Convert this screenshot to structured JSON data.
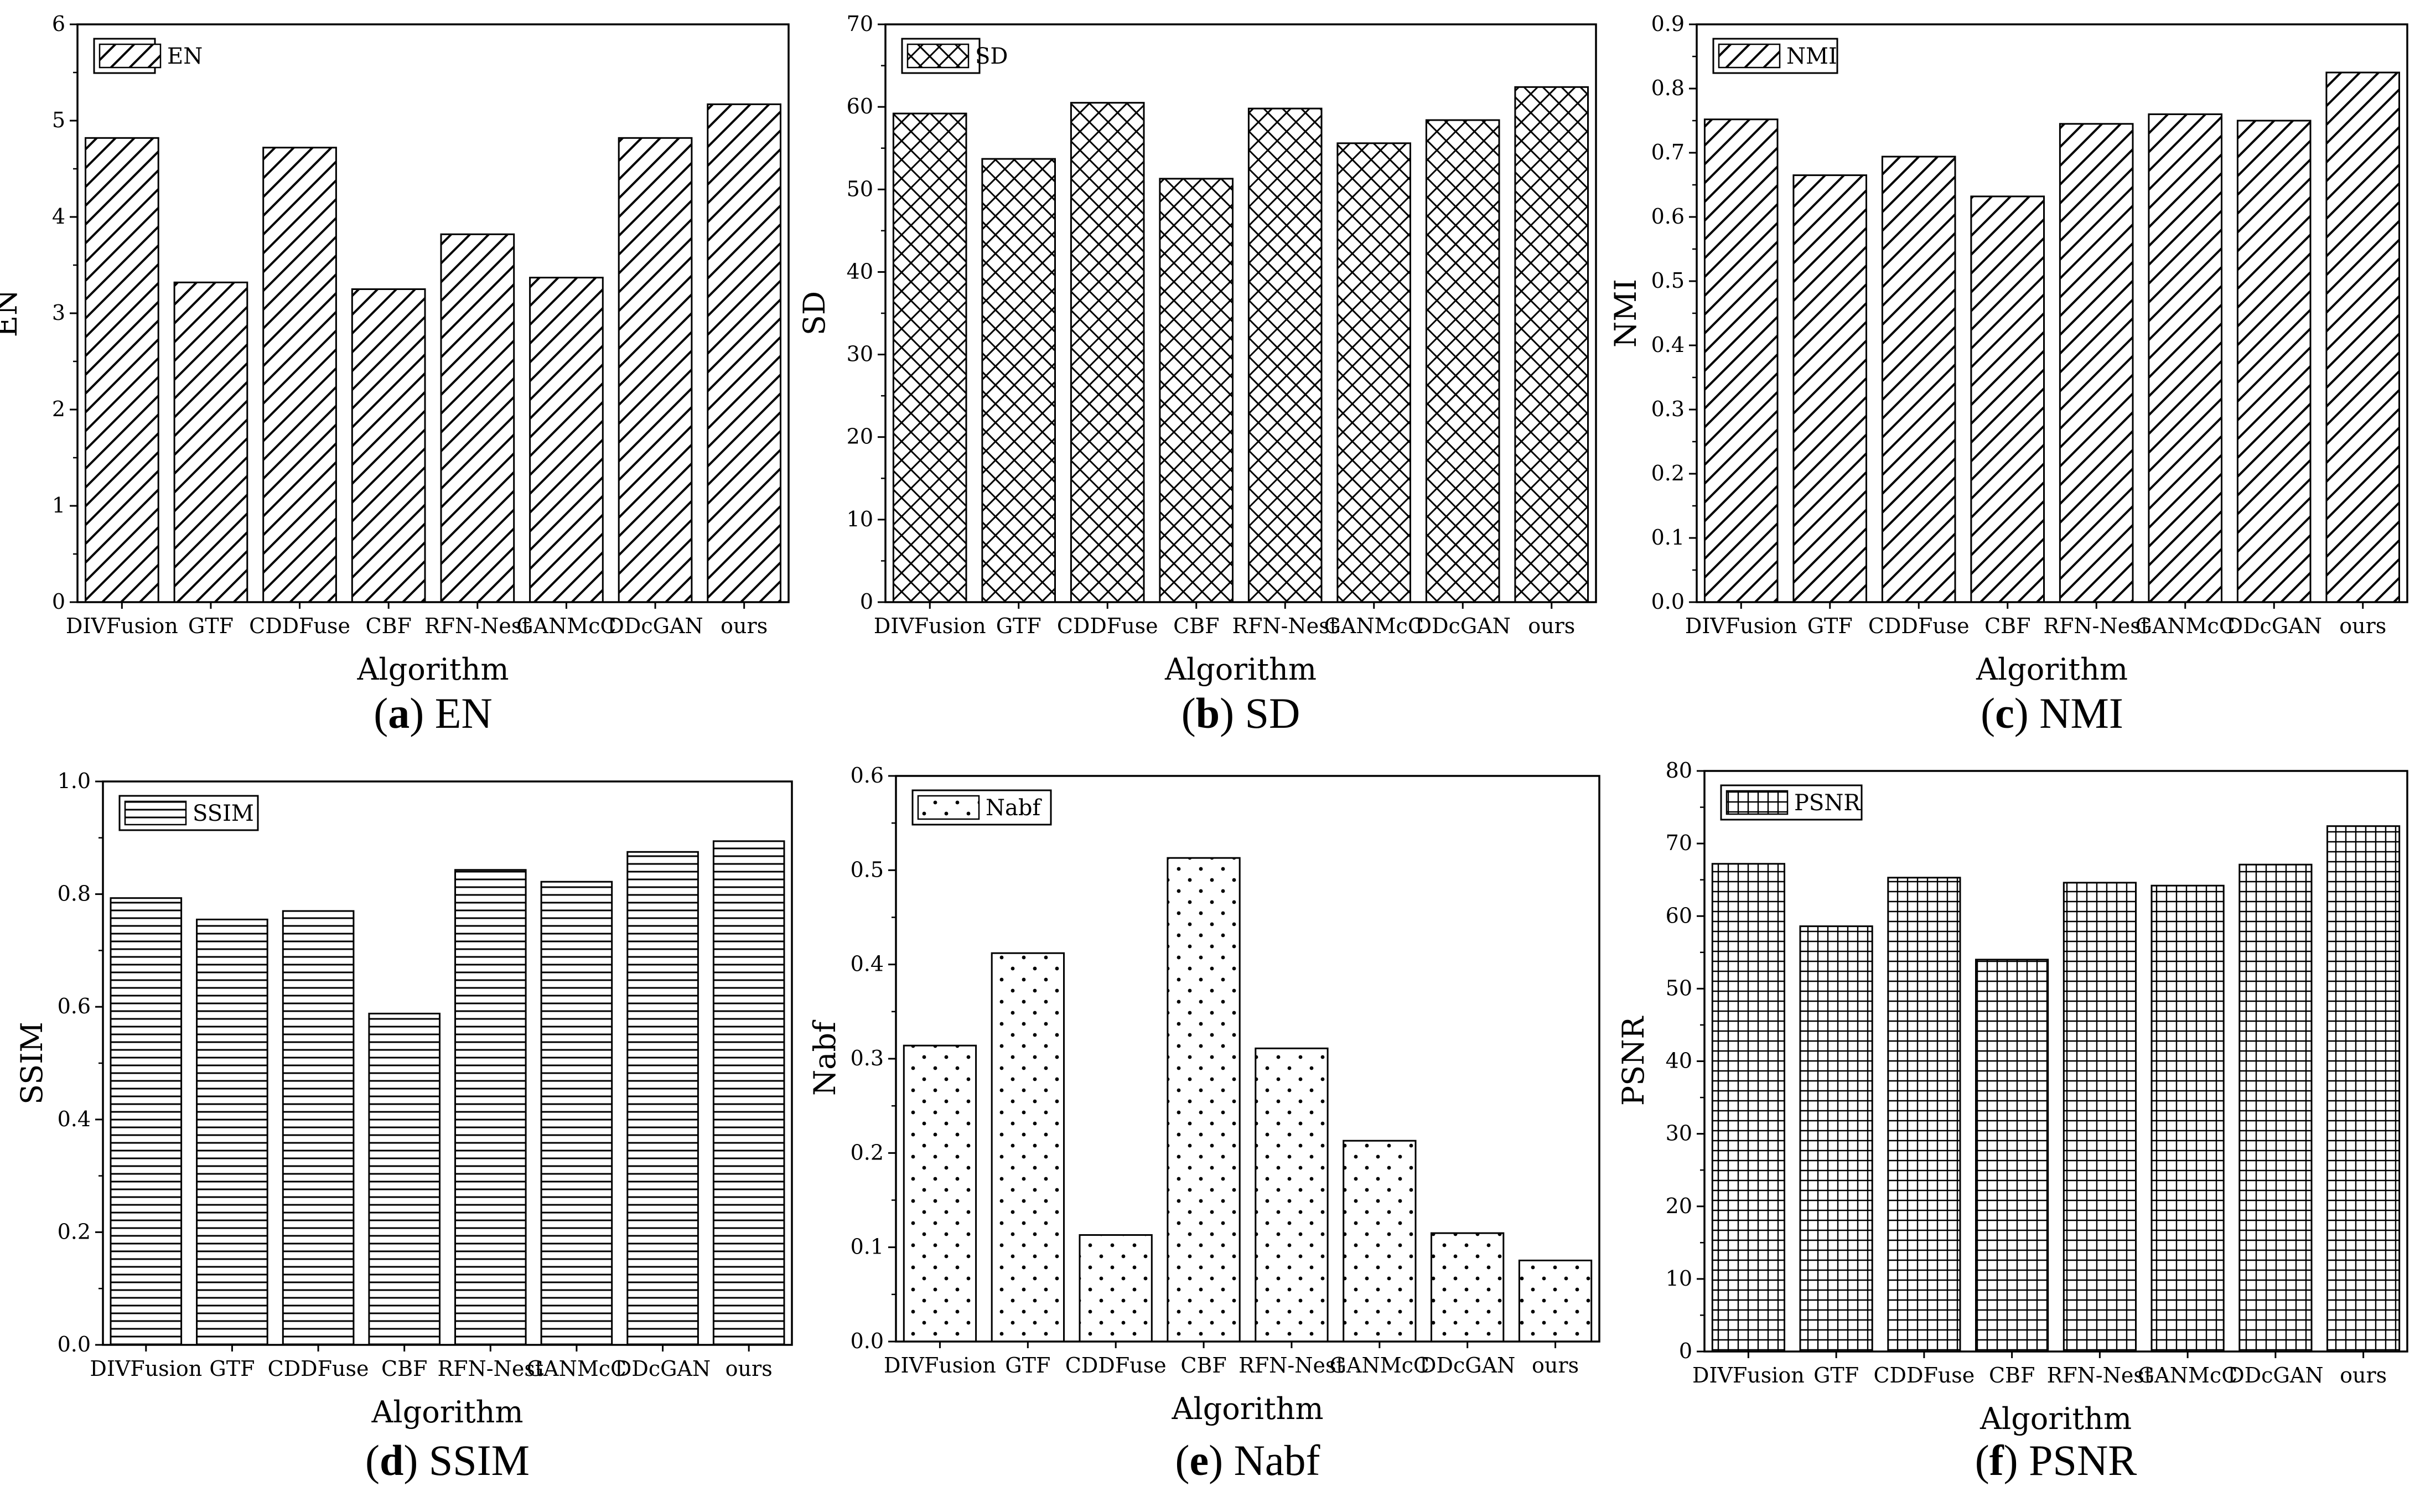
{
  "figure": {
    "charts": [
      {
        "type": "bar",
        "pattern": "diag",
        "caption_letter": "a",
        "caption_text": "EN",
        "title": "EN",
        "legend": "EN",
        "xlabel": "Algorithm",
        "ylabel": "EN",
        "categories": [
          "DIVFusion",
          "GTF",
          "CDDFuse",
          "CBF",
          "RFN-Nest",
          "GANMcC",
          "DDcGAN",
          "ours"
        ],
        "values": [
          4.82,
          3.32,
          4.72,
          3.25,
          3.82,
          3.37,
          4.82,
          5.17
        ],
        "ylim": [
          0,
          6
        ],
        "yticks": [
          0,
          1,
          2,
          3,
          4,
          5,
          6
        ],
        "ytick_labels": [
          "0",
          "1",
          "2",
          "3",
          "4",
          "5",
          "6"
        ]
      },
      {
        "type": "bar",
        "pattern": "cross",
        "caption_letter": "b",
        "caption_text": "SD",
        "title": "SD",
        "legend": "SD",
        "xlabel": "Algorithm",
        "ylabel": "SD",
        "categories": [
          "DIVFusion",
          "GTF",
          "CDDFuse",
          "CBF",
          "RFN-Nest",
          "GANMcC",
          "DDcGAN",
          "ours"
        ],
        "values": [
          59.2,
          53.7,
          60.5,
          51.3,
          59.8,
          55.6,
          58.4,
          62.4
        ],
        "ylim": [
          0,
          70
        ],
        "yticks": [
          0,
          10,
          20,
          30,
          40,
          50,
          60,
          70
        ],
        "ytick_labels": [
          "0",
          "10",
          "20",
          "30",
          "40",
          "50",
          "60",
          "70"
        ]
      },
      {
        "type": "bar",
        "pattern": "diag",
        "caption_letter": "c",
        "caption_text": "NMI",
        "title": "NMI",
        "legend": "NMI",
        "xlabel": "Algorithm",
        "ylabel": "NMI",
        "categories": [
          "DIVFusion",
          "GTF",
          "CDDFuse",
          "CBF",
          "RFN-Nest",
          "GANMcC",
          "DDcGAN",
          "ours"
        ],
        "values": [
          0.752,
          0.665,
          0.694,
          0.632,
          0.745,
          0.76,
          0.75,
          0.825
        ],
        "ylim": [
          0,
          0.9
        ],
        "yticks": [
          0,
          0.1,
          0.2,
          0.3,
          0.4,
          0.5,
          0.6,
          0.7,
          0.8,
          0.9
        ],
        "ytick_labels": [
          "0.0",
          "0.1",
          "0.2",
          "0.3",
          "0.4",
          "0.5",
          "0.6",
          "0.7",
          "0.8",
          "0.9"
        ]
      },
      {
        "type": "bar",
        "pattern": "hlines",
        "caption_letter": "d",
        "caption_text": "SSIM",
        "title": "SSIM",
        "legend": "SSIM",
        "xlabel": "Algorithm",
        "ylabel": "SSIM",
        "categories": [
          "DIVFusion",
          "GTF",
          "CDDFuse",
          "CBF",
          "RFN-Nest",
          "GANMcC",
          "DDcGAN",
          "ours"
        ],
        "values": [
          0.793,
          0.755,
          0.77,
          0.588,
          0.843,
          0.822,
          0.875,
          0.894
        ],
        "ylim": [
          0,
          1.0
        ],
        "yticks": [
          0,
          0.2,
          0.4,
          0.6,
          0.8,
          1.0
        ],
        "ytick_labels": [
          "0.0",
          "0.2",
          "0.4",
          "0.6",
          "0.8",
          "1.0"
        ]
      },
      {
        "type": "bar",
        "pattern": "dots",
        "caption_letter": "e",
        "caption_text": "Nabf",
        "title": "Nabf",
        "legend": "Nabf",
        "xlabel": "Algorithm",
        "ylabel": "Nabf",
        "categories": [
          "DIVFusion",
          "GTF",
          "CDDFuse",
          "CBF",
          "RFN-Nest",
          "GANMcC",
          "DDcGAN",
          "ours"
        ],
        "values": [
          0.314,
          0.412,
          0.113,
          0.513,
          0.311,
          0.213,
          0.115,
          0.086
        ],
        "ylim": [
          0,
          0.6
        ],
        "yticks": [
          0,
          0.1,
          0.2,
          0.3,
          0.4,
          0.5,
          0.6
        ],
        "ytick_labels": [
          "0.0",
          "0.1",
          "0.2",
          "0.3",
          "0.4",
          "0.5",
          "0.6"
        ]
      },
      {
        "type": "bar",
        "pattern": "grid",
        "caption_letter": "f",
        "caption_text": "PSNR",
        "title": "PSNR",
        "legend": "PSNR",
        "xlabel": "Algorithm",
        "ylabel": "PSNR",
        "categories": [
          "DIVFusion",
          "GTF",
          "CDDFuse",
          "CBF",
          "RFN-Nest",
          "GANMcC",
          "DDcGAN",
          "ours"
        ],
        "values": [
          67.2,
          58.6,
          65.3,
          54.0,
          64.6,
          64.2,
          67.1,
          72.4
        ],
        "ylim": [
          0,
          80
        ],
        "yticks": [
          0,
          10,
          20,
          30,
          40,
          50,
          60,
          70,
          80
        ],
        "ytick_labels": [
          "0",
          "10",
          "20",
          "30",
          "40",
          "50",
          "60",
          "70",
          "80"
        ]
      }
    ]
  }
}
